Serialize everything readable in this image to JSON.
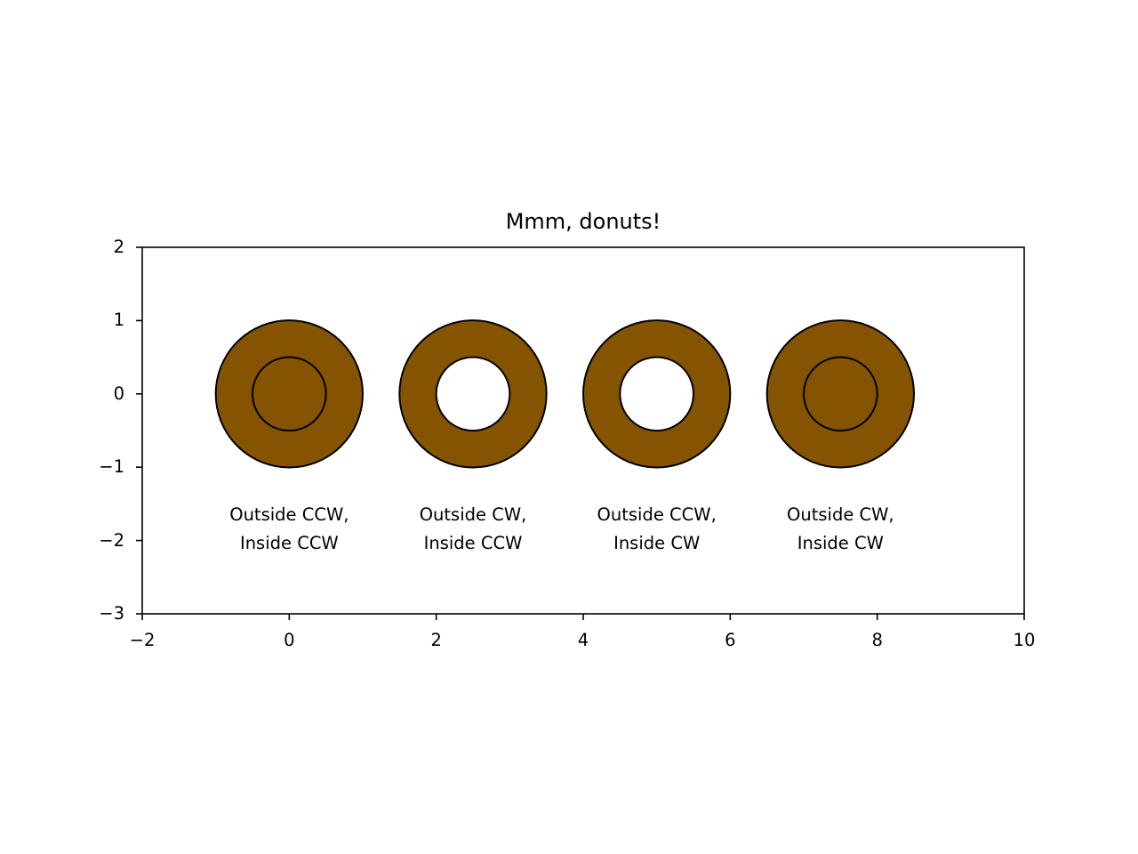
{
  "chart_data": {
    "type": "diagram-patches",
    "title": "Mmm, donuts!",
    "xlabel": "",
    "ylabel": "",
    "xlim": [
      -2,
      10
    ],
    "ylim": [
      -3,
      2
    ],
    "grid": false,
    "aspect": "equal",
    "x_ticks": [
      "−2",
      "0",
      "2",
      "4",
      "6",
      "8",
      "10"
    ],
    "x_tick_values": [
      -2,
      0,
      2,
      4,
      6,
      8,
      10
    ],
    "y_ticks": [
      "2",
      "1",
      "0",
      "−1",
      "−2",
      "−3"
    ],
    "y_tick_values": [
      2,
      1,
      0,
      -1,
      -2,
      -3
    ],
    "fill_color": "#855400",
    "edge_color": "#000000",
    "donuts": [
      {
        "x": 0.0,
        "y": 0,
        "outer_radius": 1.0,
        "inner_radius": 0.5,
        "outside": "CCW",
        "inside": "CCW",
        "hole_filled": true,
        "label_line1": "Outside CCW,",
        "label_line2": "Inside CCW"
      },
      {
        "x": 2.5,
        "y": 0,
        "outer_radius": 1.0,
        "inner_radius": 0.5,
        "outside": "CW",
        "inside": "CCW",
        "hole_filled": false,
        "label_line1": "Outside CW,",
        "label_line2": "Inside CCW"
      },
      {
        "x": 5.0,
        "y": 0,
        "outer_radius": 1.0,
        "inner_radius": 0.5,
        "outside": "CCW",
        "inside": "CW",
        "hole_filled": false,
        "label_line1": "Outside CCW,",
        "label_line2": "Inside CW"
      },
      {
        "x": 7.5,
        "y": 0,
        "outer_radius": 1.0,
        "inner_radius": 0.5,
        "outside": "CW",
        "inside": "CW",
        "hole_filled": true,
        "label_line1": "Outside CW,",
        "label_line2": "Inside CW"
      }
    ],
    "label_y": -2
  }
}
